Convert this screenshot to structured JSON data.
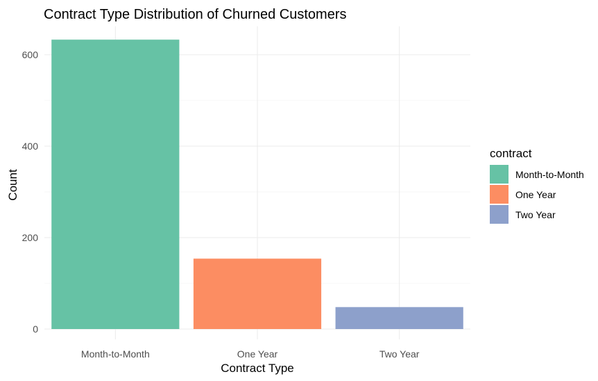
{
  "chart_data": {
    "type": "bar",
    "title": "Contract Type Distribution of Churned Customers",
    "xlabel": "Contract Type",
    "ylabel": "Count",
    "categories": [
      "Month-to-Month",
      "One Year",
      "Two Year"
    ],
    "values": [
      633,
      154,
      48
    ],
    "colors": [
      "#66c2a5",
      "#fc8d62",
      "#8da0cb"
    ],
    "ylim": [
      0,
      660
    ],
    "yticks": [
      0,
      200,
      400,
      600
    ],
    "grid": true,
    "legend": {
      "title": "contract",
      "position": "right",
      "items": [
        "Month-to-Month",
        "One Year",
        "Two Year"
      ]
    }
  }
}
